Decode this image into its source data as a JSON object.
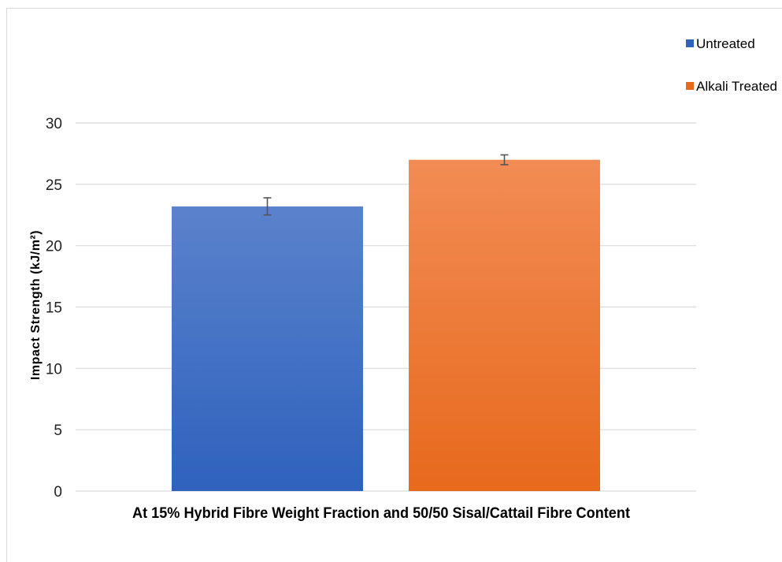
{
  "chart_data": {
    "type": "bar",
    "categories": [
      "At 15% Hybrid Fibre Weight Fraction and 50/50 Sisal/Cattail Fibre Content"
    ],
    "series": [
      {
        "name": "Untreated",
        "values": [
          23.2
        ],
        "error": [
          0.7
        ],
        "color_top": "#5b82cc",
        "color_bottom": "#2e62bd"
      },
      {
        "name": "Alkali Treated",
        "values": [
          27.0
        ],
        "error": [
          0.4
        ],
        "color_top": "#f28c55",
        "color_bottom": "#e7691c"
      }
    ],
    "title": "",
    "xlabel": "At 15% Hybrid Fibre Weight Fraction and 50/50 Sisal/Cattail Fibre Content",
    "ylabel": "Impact Strength (kJ/m²)",
    "ylim": [
      0,
      30
    ],
    "yticks": [
      "0",
      "5",
      "10",
      "15",
      "20",
      "25",
      "30"
    ],
    "grid": true,
    "legend_position": "top-right"
  }
}
